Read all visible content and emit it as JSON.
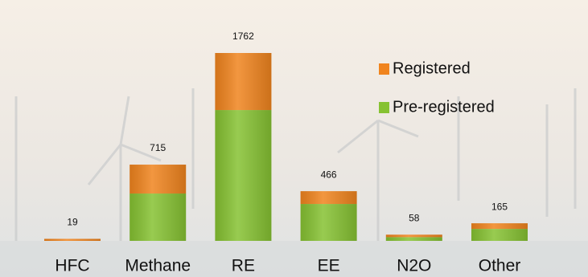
{
  "chart_data": {
    "type": "stacked-bar",
    "categories": [
      "HFC",
      "Methane",
      "RE",
      "EE",
      "N2O",
      "Other"
    ],
    "totals": [
      19,
      715,
      1762,
      466,
      58,
      165
    ],
    "series": [
      {
        "name": "Pre-registered",
        "color": "#86c232",
        "values": [
          0,
          444,
          1227,
          346,
          35,
          112
        ]
      },
      {
        "name": "Registered",
        "color": "#f0841e",
        "values": [
          19,
          271,
          535,
          120,
          23,
          53
        ]
      }
    ],
    "legend": "upper-right"
  }
}
